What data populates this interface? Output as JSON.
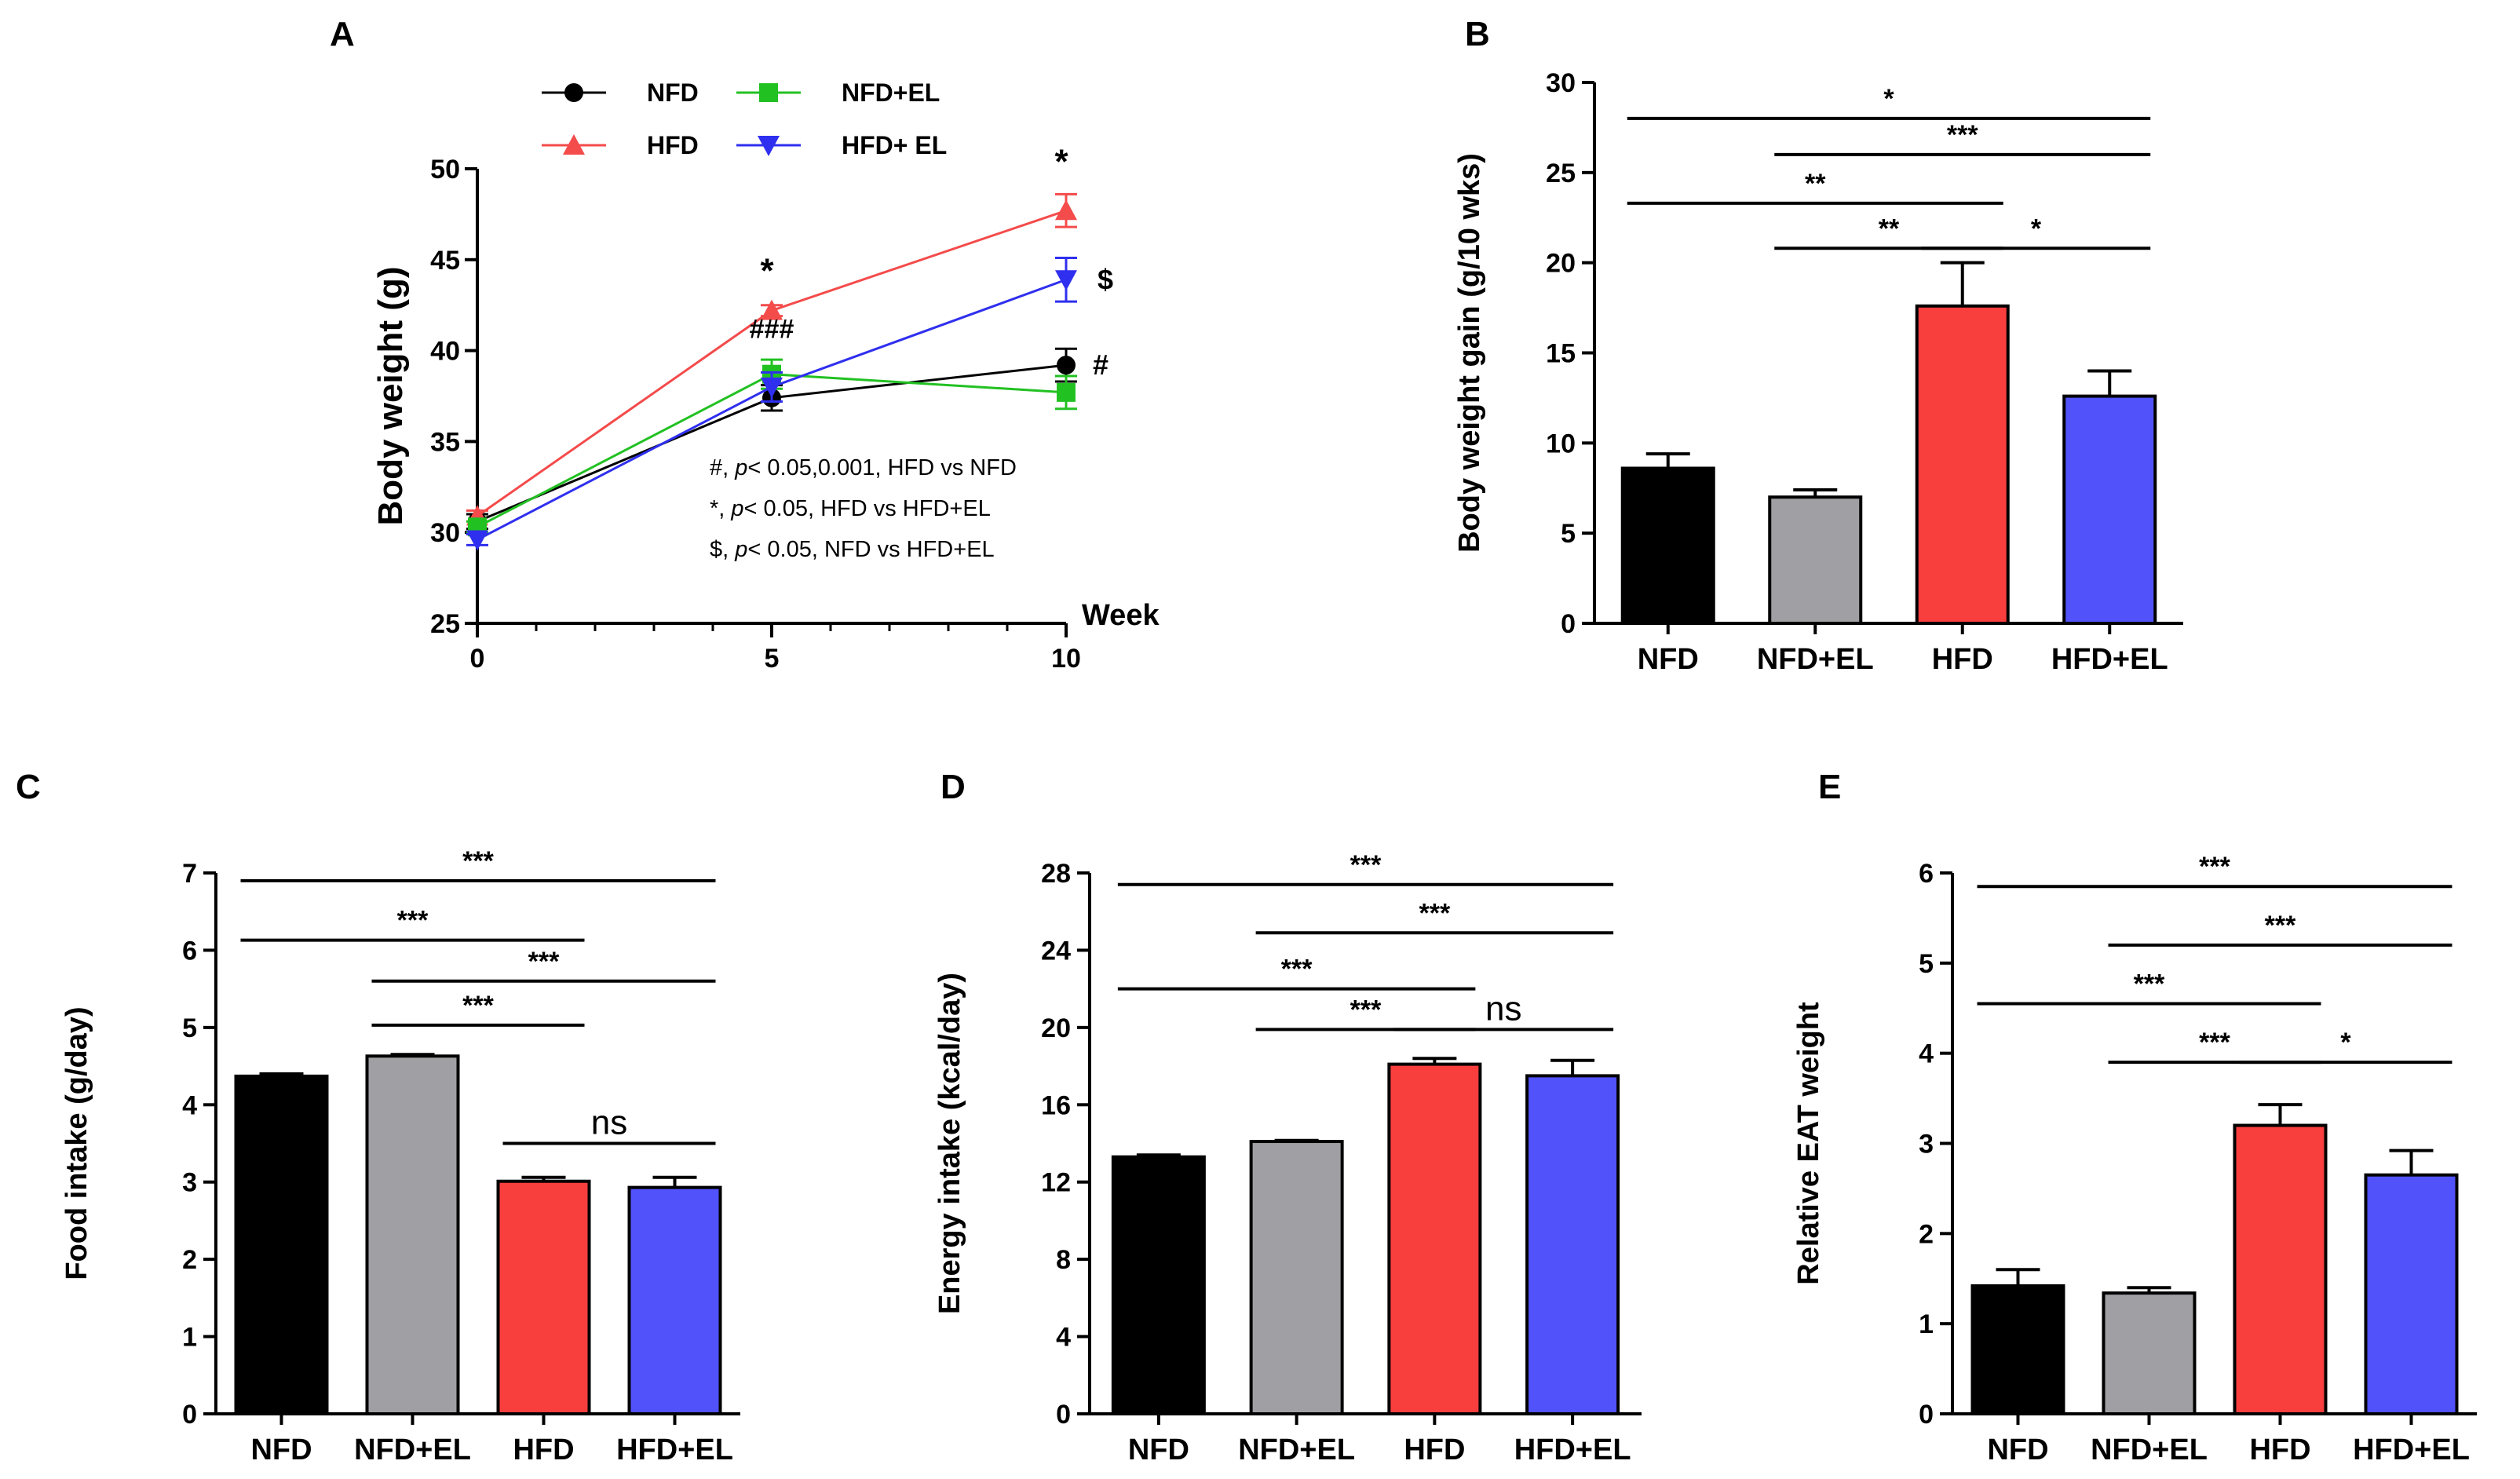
{
  "panels": {
    "A": {
      "letter": "A",
      "chart_data": {
        "type": "line",
        "x": [
          0,
          5,
          10
        ],
        "xlabel": "Week",
        "ylabel": "Body weight (g)",
        "ylim": [
          25,
          50
        ],
        "xlim": [
          0,
          10
        ],
        "yticks": [
          25,
          30,
          35,
          40,
          45,
          50
        ],
        "xticks": [
          0,
          5,
          10
        ],
        "series": [
          {
            "name": "NFD",
            "color": "#000000",
            "marker": "circle",
            "values": [
              30.6,
              37.4,
              39.2
            ],
            "errors": [
              0.4,
              0.7,
              0.9
            ]
          },
          {
            "name": "HFD",
            "color": "#f44b4b",
            "marker": "triangle-up",
            "values": [
              30.9,
              42.2,
              47.7
            ],
            "errors": [
              0.3,
              0.3,
              0.9
            ]
          },
          {
            "name": "NFD+EL",
            "color": "#22c122",
            "marker": "square",
            "values": [
              30.3,
              38.7,
              37.7
            ],
            "errors": [
              0.3,
              0.8,
              0.9
            ]
          },
          {
            "name": "HFD+ EL",
            "color": "#2f2fef",
            "marker": "triangle-down",
            "values": [
              29.6,
              38.0,
              43.9
            ],
            "errors": [
              0.3,
              0.8,
              1.2
            ]
          }
        ],
        "annotations": [
          {
            "text": "*",
            "x": 5,
            "series": "HFD"
          },
          {
            "text": "*",
            "x": 10,
            "series": "HFD"
          },
          {
            "text": "###",
            "x": 5,
            "series": "NFD+EL"
          },
          {
            "text": "#",
            "x": 10,
            "series": "NFD"
          },
          {
            "text": "$",
            "x": 10,
            "series": "HFD+ EL"
          }
        ],
        "notes": [
          {
            "sym": "#,",
            "p": "p",
            "rest": "< 0.05,0.001, HFD vs NFD"
          },
          {
            "sym": "*,",
            "p": "p",
            "rest": "< 0.05, HFD vs HFD+EL"
          },
          {
            "sym": "$,",
            "p": "p",
            "rest": "< 0.05, NFD vs HFD+EL"
          }
        ]
      }
    },
    "B": {
      "letter": "B",
      "chart_data": {
        "type": "bar",
        "categories": [
          "NFD",
          "NFD+EL",
          "HFD",
          "HFD+EL"
        ],
        "colors": [
          "#000000",
          "#a0a0a4",
          "#f93e3e",
          "#5252fa"
        ],
        "values": [
          8.6,
          7.0,
          17.6,
          12.6
        ],
        "errors": [
          0.8,
          0.4,
          2.4,
          1.4
        ],
        "ylabel": "Body weight gain (g/10 wks)",
        "ylim": [
          0,
          30
        ],
        "yticks": [
          0,
          5,
          10,
          15,
          20,
          25,
          30
        ],
        "comparisons": [
          {
            "from": 0,
            "to": 3,
            "label": "*",
            "level": 28
          },
          {
            "from": 1,
            "to": 3,
            "label": "***",
            "level": 26
          },
          {
            "from": 0,
            "to": 2,
            "label": "**",
            "level": 23.3
          },
          {
            "from": 1,
            "to": 2,
            "label": "**",
            "level": 20.8
          },
          {
            "from": 2,
            "to": 3,
            "label": "*",
            "level": 20.8
          }
        ]
      }
    },
    "C": {
      "letter": "C",
      "chart_data": {
        "type": "bar",
        "categories": [
          "NFD",
          "NFD+EL",
          "HFD",
          "HFD+EL"
        ],
        "colors": [
          "#000000",
          "#a0a0a4",
          "#f93e3e",
          "#5252fa"
        ],
        "values": [
          4.37,
          4.63,
          3.01,
          2.93
        ],
        "errors": [
          0.03,
          0.02,
          0.05,
          0.13
        ],
        "ylabel": "Food intake (g/day)",
        "ylim": [
          0,
          7
        ],
        "yticks": [
          0,
          1,
          2,
          3,
          4,
          5,
          6,
          7
        ],
        "comparisons": [
          {
            "from": 0,
            "to": 3,
            "label": "***",
            "level": 6.9
          },
          {
            "from": 0,
            "to": 2,
            "label": "***",
            "level": 6.13
          },
          {
            "from": 1,
            "to": 3,
            "label": "***",
            "level": 5.6
          },
          {
            "from": 1,
            "to": 2,
            "label": "***",
            "level": 5.03
          },
          {
            "from": 2,
            "to": 3,
            "label": "ns",
            "level": 3.5
          }
        ]
      }
    },
    "D": {
      "letter": "D",
      "chart_data": {
        "type": "bar",
        "categories": [
          "NFD",
          "NFD+EL",
          "HFD",
          "HFD+EL"
        ],
        "colors": [
          "#000000",
          "#a0a0a4",
          "#f93e3e",
          "#5252fa"
        ],
        "values": [
          13.3,
          14.1,
          18.1,
          17.5
        ],
        "errors": [
          0.1,
          0.05,
          0.3,
          0.8
        ],
        "ylabel": "Energy intake (kcal/day)",
        "ylim": [
          0,
          28
        ],
        "yticks": [
          0,
          4,
          8,
          12,
          16,
          20,
          24,
          28
        ],
        "comparisons": [
          {
            "from": 0,
            "to": 3,
            "label": "***",
            "level": 27.4
          },
          {
            "from": 1,
            "to": 3,
            "label": "***",
            "level": 24.9
          },
          {
            "from": 0,
            "to": 2,
            "label": "***",
            "level": 22.0
          },
          {
            "from": 1,
            "to": 2,
            "label": "***",
            "level": 19.9
          },
          {
            "from": 2,
            "to": 3,
            "label": "ns",
            "level": 19.9
          }
        ]
      }
    },
    "E": {
      "letter": "E",
      "chart_data": {
        "type": "bar",
        "categories": [
          "NFD",
          "NFD+EL",
          "HFD",
          "HFD+EL"
        ],
        "colors": [
          "#000000",
          "#a0a0a4",
          "#f93e3e",
          "#5252fa"
        ],
        "values": [
          1.42,
          1.34,
          3.2,
          2.65
        ],
        "errors": [
          0.18,
          0.06,
          0.23,
          0.27
        ],
        "ylabel": "Relative EAT weight",
        "ylim": [
          0,
          6
        ],
        "yticks": [
          0,
          1,
          2,
          3,
          4,
          5,
          6
        ],
        "comparisons": [
          {
            "from": 0,
            "to": 3,
            "label": "***",
            "level": 5.85
          },
          {
            "from": 1,
            "to": 3,
            "label": "***",
            "level": 5.2
          },
          {
            "from": 0,
            "to": 2,
            "label": "***",
            "level": 4.55
          },
          {
            "from": 1,
            "to": 2,
            "label": "***",
            "level": 3.9
          },
          {
            "from": 2,
            "to": 3,
            "label": "*",
            "level": 3.9
          }
        ]
      }
    }
  }
}
